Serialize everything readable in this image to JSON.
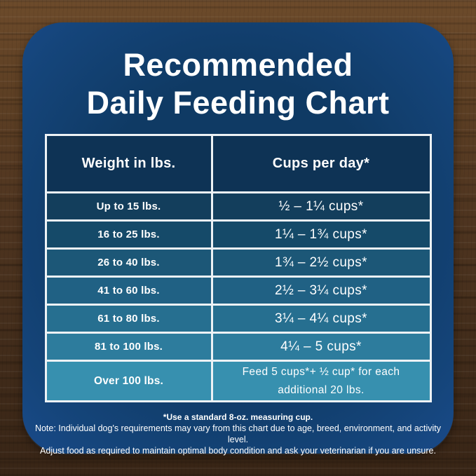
{
  "title": {
    "line1": "Recommended",
    "line2": "Daily Feeding Chart"
  },
  "chart_data": {
    "type": "table",
    "title": "Recommended Daily Feeding Chart",
    "columns": [
      "Weight in lbs.",
      "Cups per day*"
    ],
    "rows": [
      [
        "Up to 15 lbs.",
        "½ – 1¼ cups*"
      ],
      [
        "16 to 25 lbs.",
        "1¼ – 1¾ cups*"
      ],
      [
        "26 to 40 lbs.",
        "1¾ – 2½ cups*"
      ],
      [
        "41 to 60 lbs.",
        "2½ – 3¼ cups*"
      ],
      [
        "61 to 80 lbs.",
        "3¼ – 4¼ cups*"
      ],
      [
        "81 to 100 lbs.",
        "4¼ – 5 cups*"
      ],
      [
        "Over 100 lbs.",
        "Feed 5 cups*+ ½ cup* for each additional 20 lbs."
      ]
    ],
    "notes": [
      "*Use a standard 8-oz. measuring cup.",
      "Note: Individual dog's requirements may vary from this chart due to age, breed, environment, and activity level.",
      "Adjust food as required to maintain optimal body condition and ask your veterinarian if you are unsure."
    ]
  },
  "footnotes": {
    "cup_note": "*Use a standard 8-oz. measuring cup.",
    "note_line1": "Note: Individual dog's requirements may vary from this chart due to age, breed, environment, and activity level.",
    "note_line2": "Adjust food as required to maintain optimal body condition and ask your veterinarian if you are unsure."
  },
  "colors": {
    "card_center": "#0f3a64",
    "card_edge": "#1a4b8c",
    "header_bg": "#0e3355",
    "table_border": "#edf2f5",
    "text": "#ffffff",
    "wood_light": "#6d4b2b",
    "wood_dark": "#382516",
    "row_bgs": [
      "#133e5c",
      "#154a69",
      "#1c5777",
      "#206184",
      "#266f90",
      "#2d7c9d",
      "#3790af"
    ]
  }
}
